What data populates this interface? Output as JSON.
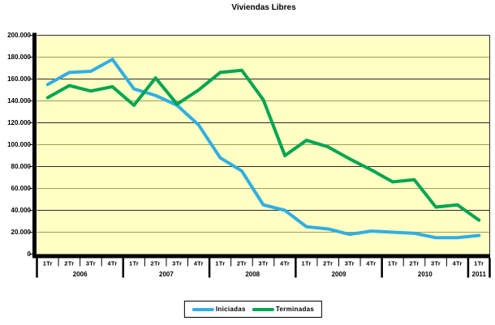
{
  "title": "Viviendas Libres",
  "legend": {
    "items": [
      {
        "label": "Iniciadas",
        "color": "#31AEE3"
      },
      {
        "label": "Terminadas",
        "color": "#00A551"
      }
    ]
  },
  "chart_data": {
    "type": "line",
    "title": "Viviendas Libres",
    "xlabel": "",
    "ylabel": "",
    "ylim": [
      0,
      200000
    ],
    "y_tick_step": 20000,
    "y_tick_labels": [
      "0",
      "20.000",
      "40.000",
      "60.000",
      "80.000",
      "100.000",
      "120.000",
      "140.000",
      "160.000",
      "180.000",
      "200.000"
    ],
    "grid": "on",
    "legend_position": "bottom",
    "plot_bg": "#FFFFC4",
    "grid_major_color": "#2b2b2b",
    "grid_minor_color": "#9e9e52",
    "axis_color": "#000000",
    "quarter_labels": [
      "1Tr",
      "2Tr",
      "3Tr",
      "4Tr",
      "1Tr",
      "2Tr",
      "3Tr",
      "4Tr",
      "1Tr",
      "2Tr",
      "3Tr",
      "4Tr",
      "1Tr",
      "2Tr",
      "3Tr",
      "4Tr",
      "1Tr",
      "2Tr",
      "3Tr",
      "4Tr",
      "1Tr"
    ],
    "year_groups": [
      {
        "label": "2006",
        "span": 4
      },
      {
        "label": "2007",
        "span": 4
      },
      {
        "label": "2008",
        "span": 4
      },
      {
        "label": "2009",
        "span": 4
      },
      {
        "label": "2010",
        "span": 4
      },
      {
        "label": "2011",
        "span": 1
      }
    ],
    "series": [
      {
        "name": "Iniciadas",
        "color": "#31AEE3",
        "values": [
          155000,
          166000,
          167000,
          178000,
          151000,
          145000,
          136000,
          118000,
          88000,
          76000,
          45000,
          40000,
          25000,
          23000,
          18000,
          21000,
          20000,
          19000,
          15000,
          15000,
          17000
        ]
      },
      {
        "name": "Terminadas",
        "color": "#00A551",
        "values": [
          143000,
          154000,
          149000,
          153000,
          136000,
          161000,
          137000,
          150000,
          166000,
          168000,
          141000,
          90000,
          104000,
          98000,
          87000,
          77000,
          66000,
          68000,
          43000,
          45000,
          31000
        ]
      }
    ]
  }
}
